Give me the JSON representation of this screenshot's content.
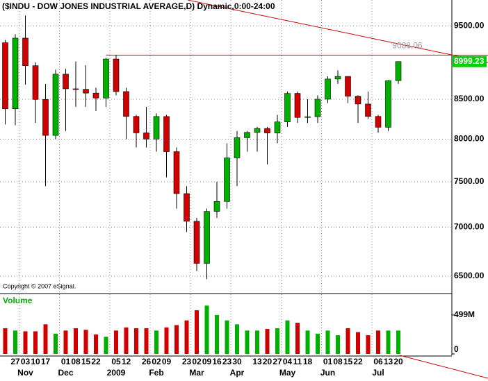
{
  "chart_data": {
    "type": "candlestick",
    "title": "($INDU - DOW JONES INDUSTRIAL AVERAGE,D) Dynamic,0:00-24:00",
    "copyright": "Copyright © 2007 eSignal.",
    "categories": [
      null,
      "27",
      "03",
      "10",
      "17",
      null,
      "01",
      "08",
      "15",
      "22",
      null,
      "05",
      "12",
      null,
      "26",
      "02",
      "09",
      null,
      "23",
      "02",
      "09",
      "16",
      "23",
      "30",
      null,
      "13",
      "20",
      "27",
      "04",
      "11",
      "18",
      null,
      "01",
      "08",
      "15",
      "22",
      null,
      "06",
      "13",
      "20"
    ],
    "category_groups": [
      null,
      null,
      "Nov",
      null,
      null,
      null,
      "Dec",
      null,
      null,
      null,
      null,
      "2009",
      null,
      null,
      null,
      "Feb",
      null,
      null,
      null,
      "Mar",
      null,
      null,
      null,
      "Apr",
      null,
      null,
      null,
      null,
      "May",
      null,
      null,
      null,
      "Jun",
      null,
      null,
      null,
      null,
      "Jul",
      null,
      null
    ],
    "open": [
      9260,
      8378,
      9325,
      8943,
      8497,
      8046,
      8829,
      8635,
      8629,
      8579,
      8515,
      9034,
      8599,
      8281,
      8077,
      8001,
      8280,
      7850,
      7366,
      7063,
      6627,
      7170,
      7279,
      7776,
      8018,
      8083,
      8131,
      8076,
      8212,
      8575,
      8268,
      8277,
      8500,
      8764,
      8799,
      8539,
      8438,
      8281,
      8146,
      8743
    ],
    "high": [
      9300,
      9380,
      9650,
      8990,
      8700,
      8890,
      8900,
      9000,
      8950,
      8650,
      9050,
      9090,
      8650,
      8300,
      8400,
      8320,
      8300,
      7900,
      7450,
      7100,
      7200,
      7500,
      7950,
      8100,
      8100,
      8150,
      8150,
      8300,
      8600,
      8600,
      8500,
      8550,
      8800,
      8880,
      8800,
      8550,
      8600,
      8300,
      8750,
      9000
    ],
    "low": [
      8180,
      8170,
      8690,
      8200,
      7450,
      8000,
      8100,
      8400,
      8400,
      8350,
      8400,
      8550,
      8000,
      7900,
      7900,
      7850,
      7550,
      7200,
      6950,
      6550,
      6470,
      7100,
      7200,
      7450,
      7850,
      7850,
      7700,
      7950,
      8150,
      8200,
      8200,
      8200,
      8450,
      8700,
      8450,
      8200,
      8250,
      8080,
      8100,
      8700
    ],
    "close": [
      8378,
      9325,
      8943,
      8497,
      8046,
      8829,
      8635,
      8629,
      8579,
      8515,
      9034,
      8599,
      8281,
      8077,
      8001,
      8280,
      7850,
      7366,
      7063,
      6627,
      7170,
      7279,
      7776,
      8018,
      8083,
      8131,
      8076,
      8212,
      8575,
      8268,
      8277,
      8500,
      8764,
      8799,
      8539,
      8438,
      8281,
      8146,
      8743,
      8999
    ],
    "volume": [
      330,
      300,
      290,
      290,
      380,
      260,
      300,
      330,
      310,
      250,
      220,
      300,
      340,
      330,
      330,
      300,
      340,
      370,
      430,
      560,
      620,
      500,
      430,
      380,
      300,
      300,
      320,
      330,
      430,
      400,
      300,
      260,
      300,
      240,
      330,
      280,
      240,
      300,
      300,
      300
    ],
    "up_color": "#00b000",
    "down_color": "#d00000",
    "log_scale": true,
    "grid": true,
    "ylim": [
      6350,
      9880
    ],
    "yticks": [
      {
        "value": 9500,
        "label": "9500.00"
      },
      {
        "value": 8500,
        "label": "8500.00"
      },
      {
        "value": 8000,
        "label": "8000.00"
      },
      {
        "value": 7500,
        "label": "7500.00"
      },
      {
        "value": 7000,
        "label": "7000.00"
      },
      {
        "value": 6500,
        "label": "6500.00"
      }
    ],
    "last_price": 8999.23,
    "hline": {
      "value": 9088.06,
      "label": "'9088,06"
    },
    "volume_title": "Volume",
    "volume_ylim": [
      0,
      730
    ],
    "volume_yticks": [
      {
        "value": 499,
        "label": "499M"
      },
      0
    ]
  }
}
